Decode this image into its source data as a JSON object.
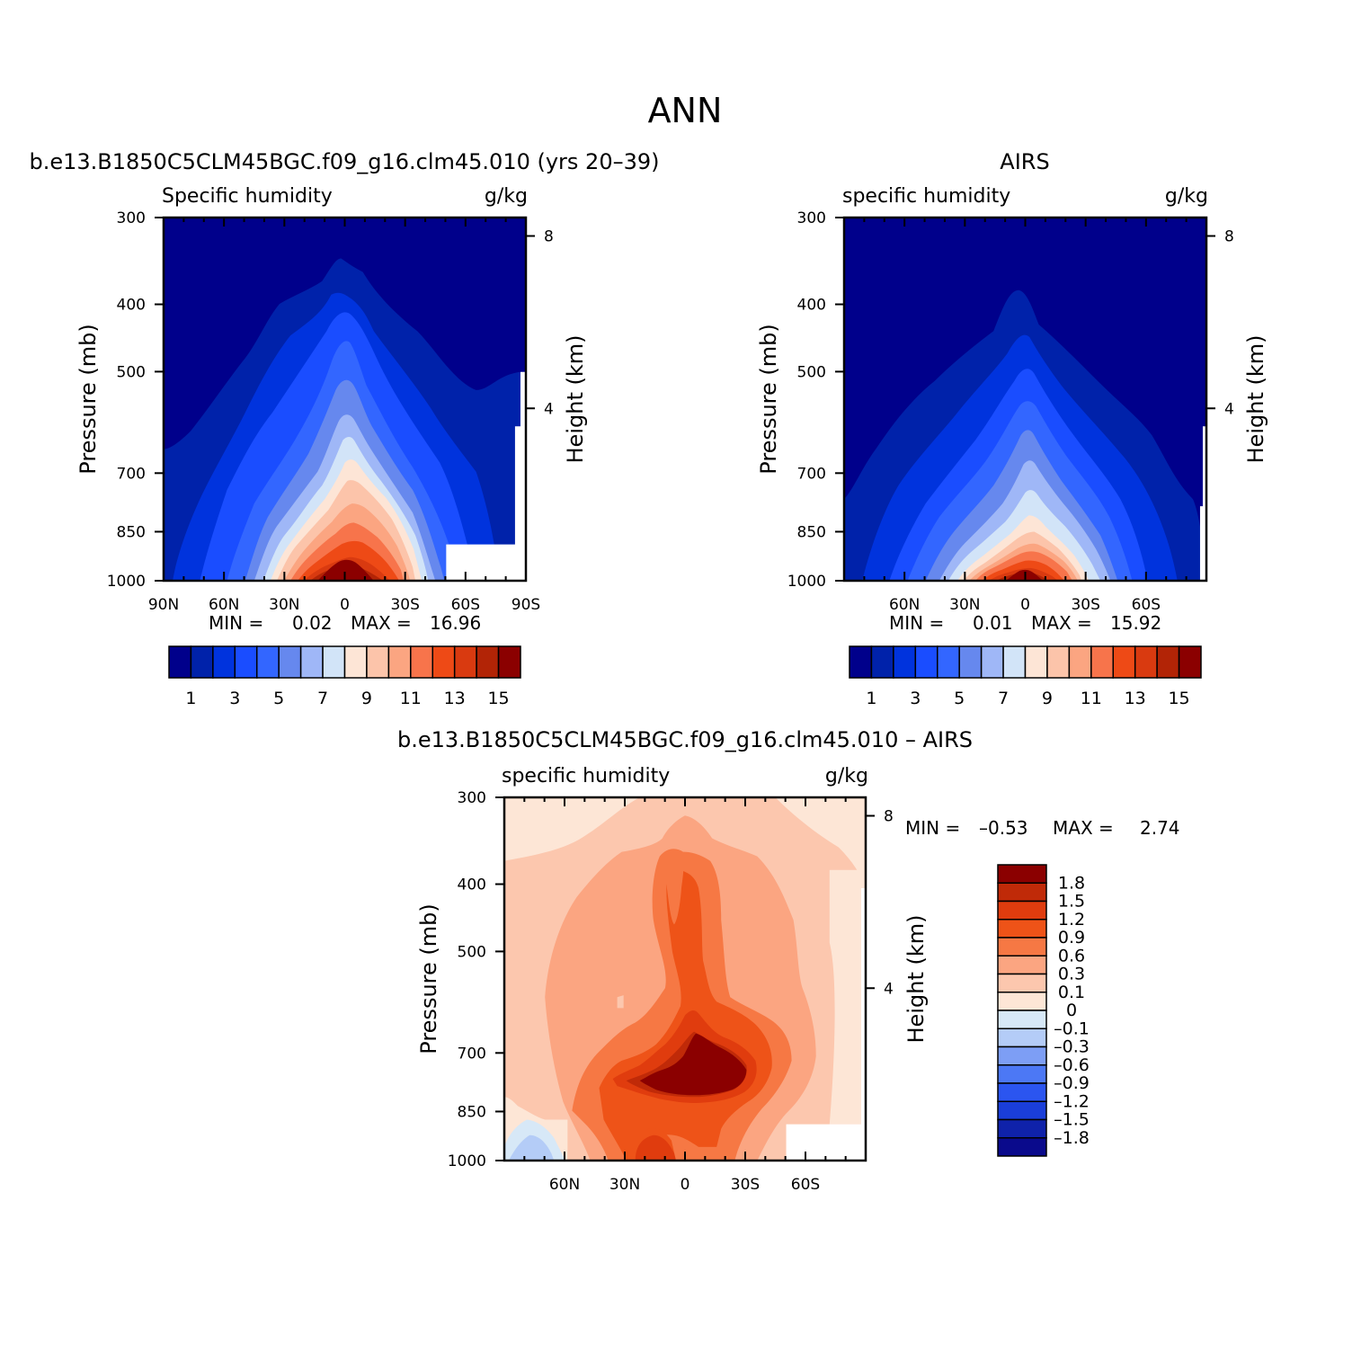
{
  "figure_title": "ANN",
  "colors": {
    "model_levels": [
      "#00008b",
      "#0022aa",
      "#0033dd",
      "#1a4dff",
      "#3366ff",
      "#6688ee",
      "#9fb7f7",
      "#d2e4f8",
      "#fde5d6",
      "#fcc4aa",
      "#fba581",
      "#f7744b",
      "#ee4a16",
      "#d93a10",
      "#b22406",
      "#8b0000"
    ],
    "diff_levels": [
      "#0a0a8c",
      "#0f22aa",
      "#1a3ed9",
      "#2b55f0",
      "#4c78f5",
      "#7d9ef5",
      "#b4ccf7",
      "#d7e8f7",
      "#fde6d6",
      "#fcc7ae",
      "#fba581",
      "#f67844",
      "#ee5318",
      "#e03c0e",
      "#c02a08",
      "#8b0000"
    ]
  },
  "chart_data": [
    {
      "id": "model",
      "type": "heatmap",
      "top_title": "b.e13.B1850C5CLM45BGC.f09_g16.clm45.010 (yrs 20–39)",
      "left_string": "Specific humidity",
      "right_string": "g/kg",
      "xlabel": "",
      "ylabel": "Pressure (mb)",
      "ylabel_right": "Height (km)",
      "x_ticks": [
        90,
        60,
        30,
        0,
        -30,
        -60,
        -90
      ],
      "x_tick_labels": [
        "90N",
        "60N",
        "30N",
        "0",
        "30S",
        "60S",
        "90S"
      ],
      "y_ticks": [
        300,
        400,
        500,
        700,
        850,
        1000
      ],
      "y_tick_labels": [
        "300",
        "400",
        "500",
        "700",
        "850",
        "1000"
      ],
      "height_ticks": [
        8,
        4
      ],
      "height_tick_labels": [
        "8",
        "4"
      ],
      "xlim": [
        90,
        -90
      ],
      "ylim": [
        300,
        1000
      ],
      "min_label": "MIN =",
      "min_value": "0.02",
      "max_label": "MAX =",
      "max_value": "16.96",
      "min": 0.02,
      "max": 16.96,
      "contour_levels": [
        1,
        2,
        3,
        4,
        5,
        6,
        7,
        8,
        9,
        10,
        11,
        12,
        13,
        14,
        15
      ],
      "colorbar_labels": [
        "1",
        "3",
        "5",
        "7",
        "9",
        "11",
        "13",
        "15"
      ],
      "surface_mask": "Antarctic topography below ~900 mb poleward of 60S"
    },
    {
      "id": "obs",
      "type": "heatmap",
      "top_title": "AIRS",
      "left_string": "specific humidity",
      "right_string": "g/kg",
      "xlabel": "",
      "ylabel": "Pressure (mb)",
      "ylabel_right": "Height (km)",
      "x_ticks": [
        60,
        30,
        0,
        -30,
        -60
      ],
      "x_tick_labels": [
        "60N",
        "30N",
        "0",
        "30S",
        "60S"
      ],
      "y_ticks": [
        300,
        400,
        500,
        700,
        850,
        1000
      ],
      "y_tick_labels": [
        "300",
        "400",
        "500",
        "700",
        "850",
        "1000"
      ],
      "height_ticks": [
        8,
        4
      ],
      "height_tick_labels": [
        "8",
        "4"
      ],
      "xlim": [
        90,
        -90
      ],
      "ylim": [
        300,
        1000
      ],
      "min_label": "MIN =",
      "min_value": "0.01",
      "max_label": "MAX =",
      "max_value": "15.92",
      "min": 0.01,
      "max": 15.92,
      "contour_levels": [
        1,
        2,
        3,
        4,
        5,
        6,
        7,
        8,
        9,
        10,
        11,
        12,
        13,
        14,
        15
      ],
      "colorbar_labels": [
        "1",
        "3",
        "5",
        "7",
        "9",
        "11",
        "13",
        "15"
      ]
    },
    {
      "id": "diff",
      "type": "heatmap",
      "top_title": "b.e13.B1850C5CLM45BGC.f09_g16.clm45.010 – AIRS",
      "left_string": "specific humidity",
      "right_string": "g/kg",
      "xlabel": "",
      "ylabel": "Pressure (mb)",
      "ylabel_right": "Height (km)",
      "x_ticks": [
        60,
        30,
        0,
        -30,
        -60
      ],
      "x_tick_labels": [
        "60N",
        "30N",
        "0",
        "30S",
        "60S"
      ],
      "y_ticks": [
        300,
        400,
        500,
        700,
        850,
        1000
      ],
      "y_tick_labels": [
        "300",
        "400",
        "500",
        "700",
        "850",
        "1000"
      ],
      "height_ticks": [
        8,
        4
      ],
      "height_tick_labels": [
        "8",
        "4"
      ],
      "xlim": [
        90,
        -90
      ],
      "ylim": [
        300,
        1000
      ],
      "min_label": "MIN =",
      "min_value": "–0.53",
      "max_label": "MAX =",
      "max_value": "2.74",
      "min": -0.53,
      "max": 2.74,
      "contour_levels": [
        -1.8,
        -1.5,
        -1.2,
        -0.9,
        -0.6,
        -0.3,
        -0.1,
        0,
        0.1,
        0.3,
        0.6,
        0.9,
        1.2,
        1.5,
        1.8
      ],
      "colorbar_labels": [
        "1.8",
        "1.5",
        "1.2",
        "0.9",
        "0.6",
        "0.3",
        "0.1",
        "0",
        "–0.1",
        "–0.3",
        "–0.6",
        "–0.9",
        "–1.2",
        "–1.5",
        "–1.8"
      ]
    }
  ]
}
